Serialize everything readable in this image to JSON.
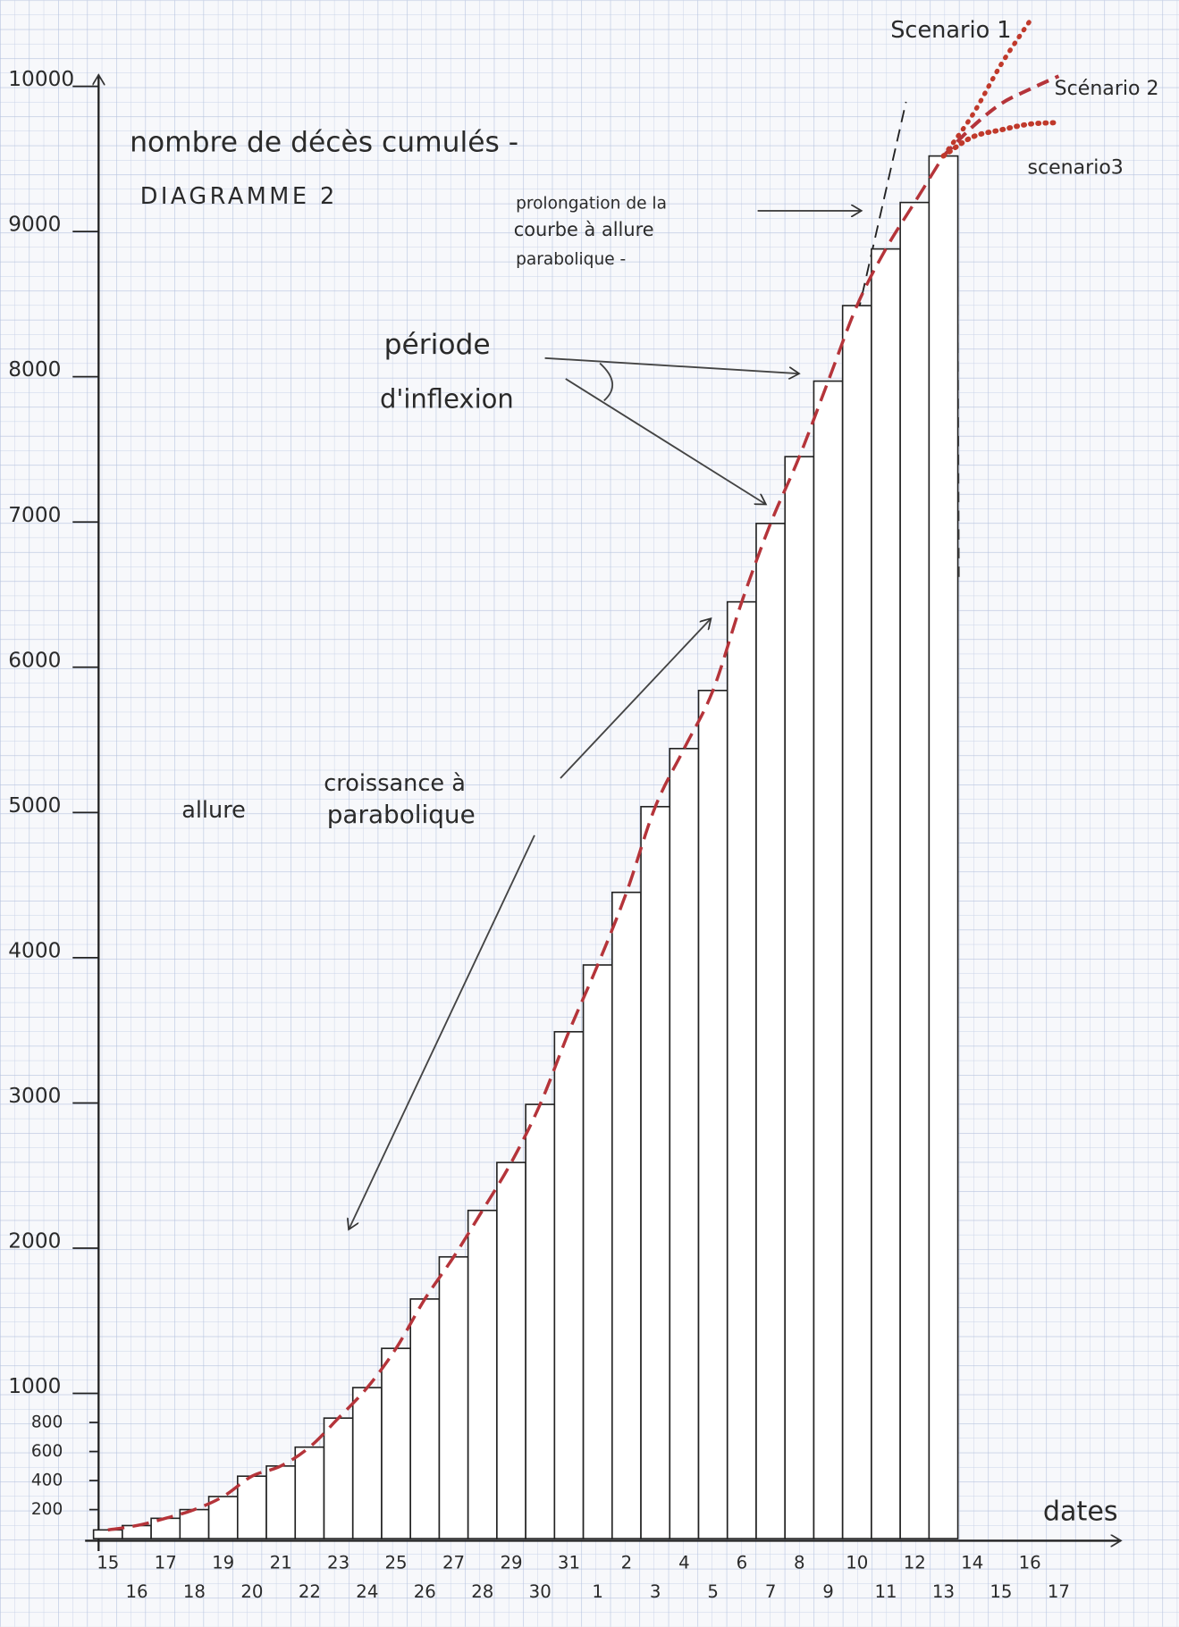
{
  "chart_data": {
    "type": "bar",
    "title": "nombre de décès cumulés -",
    "subtitle": "DIAGRAMME 2",
    "x_label": "dates",
    "categories": [
      "15",
      "16",
      "17",
      "18",
      "19",
      "20",
      "21",
      "22",
      "23",
      "24",
      "25",
      "26",
      "27",
      "28",
      "29",
      "30",
      "31",
      "1",
      "2",
      "3",
      "4",
      "5",
      "6",
      "7",
      "8",
      "9",
      "10",
      "11",
      "12",
      "13",
      "14",
      "15",
      "16",
      "17"
    ],
    "values": [
      60,
      90,
      140,
      200,
      290,
      430,
      500,
      630,
      830,
      1040,
      1310,
      1650,
      1940,
      2260,
      2590,
      2990,
      3490,
      3950,
      4450,
      5040,
      5440,
      5840,
      6450,
      6990,
      7450,
      7970,
      8490,
      8880,
      9200,
      9520,
      null,
      null,
      null,
      null
    ],
    "color": "#ffffff",
    "trend_color": "#b5343a",
    "series": [
      {
        "name": "Scenario 1",
        "color": "#c0392b",
        "values": [
          null,
          null,
          null,
          null,
          null,
          null,
          null,
          null,
          null,
          null,
          null,
          null,
          null,
          null,
          null,
          null,
          null,
          null,
          null,
          null,
          null,
          null,
          null,
          null,
          null,
          null,
          null,
          null,
          null,
          9520,
          9800,
          10150,
          10450,
          null
        ]
      },
      {
        "name": "Scénario 2",
        "color": "#b5343a",
        "values": [
          null,
          null,
          null,
          null,
          null,
          null,
          null,
          null,
          null,
          null,
          null,
          null,
          null,
          null,
          null,
          null,
          null,
          null,
          null,
          null,
          null,
          null,
          null,
          null,
          null,
          null,
          null,
          null,
          null,
          9520,
          9720,
          9880,
          9980,
          10070
        ]
      },
      {
        "name": "scenario3",
        "color": "#c0392b",
        "values": [
          null,
          null,
          null,
          null,
          null,
          null,
          null,
          null,
          null,
          null,
          null,
          null,
          null,
          null,
          null,
          null,
          null,
          null,
          null,
          null,
          null,
          null,
          null,
          null,
          null,
          null,
          null,
          null,
          null,
          9520,
          9650,
          9700,
          9740,
          9750
        ]
      }
    ],
    "ylim": [
      0,
      10500
    ],
    "yticks": [
      200,
      400,
      600,
      800,
      1000,
      2000,
      3000,
      4000,
      5000,
      6000,
      7000,
      8000,
      9000,
      10000
    ],
    "annotations": [
      "prolongation de la",
      "courbe à allure",
      "parabolique -",
      "période",
      "d'inflexion",
      "croissance à",
      "allure",
      "parabolique"
    ]
  }
}
